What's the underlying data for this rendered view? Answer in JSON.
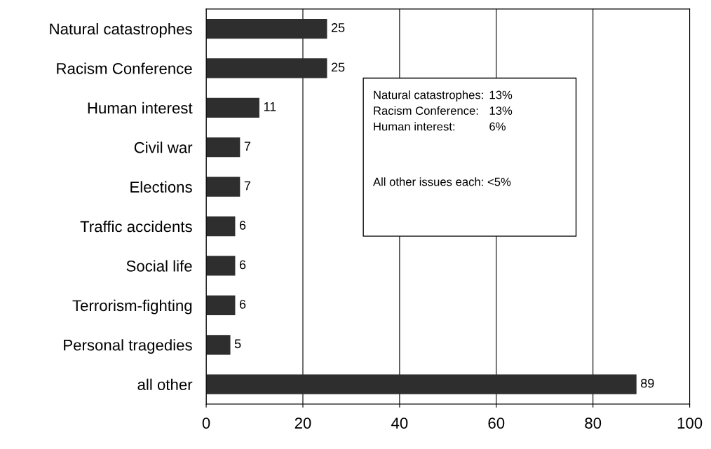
{
  "chart_data": {
    "type": "bar",
    "orientation": "horizontal",
    "categories": [
      "Natural catastrophes",
      "Racism Conference",
      "Human interest",
      "Civil war",
      "Elections",
      "Traffic accidents",
      "Social life",
      "Terrorism-fighting",
      "Personal tragedies",
      "all other"
    ],
    "values": [
      25,
      25,
      11,
      7,
      7,
      6,
      6,
      6,
      5,
      89
    ],
    "color": "#2e2e2e",
    "xlim": [
      0,
      100
    ],
    "xticks": [
      0,
      20,
      40,
      60,
      80,
      100
    ],
    "grid": "x",
    "data_labels": true,
    "annotations": [
      "Natural catastrophes:",
      "13%",
      "Racism Conference:",
      "13%",
      "Human interest:",
      "6%",
      "All other issues each: <5%"
    ]
  }
}
